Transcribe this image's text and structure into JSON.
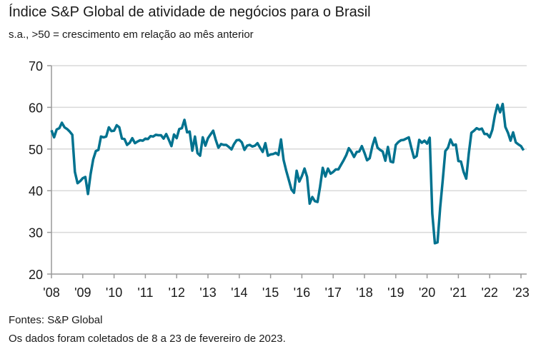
{
  "header": {
    "title": "Índice S&P Global de atividade de negócios para o Brasil",
    "subtitle": "s.a., >50 = crescimento em relação ao mês anterior"
  },
  "footer": {
    "source": "Fontes: S&P Global",
    "note": "Os dados foram coletados de 8 a 23 de fevereiro de 2023."
  },
  "chart_data": {
    "type": "line",
    "title": "Índice S&P Global de atividade de negócios para o Brasil",
    "subtitle": "s.a., >50 = crescimento em relação ao mês anterior",
    "xlabel": "",
    "ylabel": "",
    "ylim": [
      20,
      70
    ],
    "yticks": [
      "70",
      "60",
      "50",
      "40",
      "30",
      "20"
    ],
    "xticks": [
      "'08",
      "'09",
      "'10",
      "'11",
      "'12",
      "'13",
      "'14",
      "'15",
      "'16",
      "'17",
      "'18",
      "'19",
      "'20",
      "'21",
      "'22",
      "'23"
    ],
    "x_start": "2008-01",
    "x_end": "2023-02",
    "frequency": "monthly",
    "grid": true,
    "line_color": "#00728f",
    "values": [
      54.5,
      52.8,
      54.7,
      55,
      56.3,
      55.2,
      54.8,
      54.2,
      53.4,
      44.5,
      41.8,
      42.3,
      43,
      43.3,
      39.2,
      44,
      47.5,
      49.5,
      49.8,
      53,
      52.8,
      53,
      55.2,
      54.3,
      54.4,
      55.7,
      55.2,
      52.5,
      52.4,
      51,
      51.5,
      52.6,
      51.4,
      51.8,
      52.1,
      52,
      52.5,
      52.4,
      53.1,
      53,
      53.4,
      53.3,
      53.3,
      52.5,
      53.6,
      52.2,
      50.7,
      53.5,
      52.6,
      54.8,
      55,
      57,
      54,
      54.2,
      49.6,
      53,
      49,
      48.4,
      52.8,
      50.8,
      52.6,
      53.5,
      54.4,
      52.2,
      50.3,
      51.2,
      51,
      51,
      50.5,
      49.9,
      51.2,
      52.1,
      52.2,
      51.6,
      49.8,
      50.8,
      51,
      50.6,
      50.8,
      51.4,
      50.3,
      49.3,
      51.4,
      48.4,
      48.7,
      48.8,
      49.1,
      48.6,
      52.3,
      47.4,
      44.8,
      42.6,
      40.3,
      39.5,
      44.8,
      42.2,
      43.5,
      45.3,
      43.3,
      36.9,
      38.5,
      37.5,
      37.3,
      41,
      45.5,
      43.4,
      45.3,
      44.1,
      44.5,
      45.1,
      45.1,
      46.2,
      47.3,
      48.5,
      50.2,
      49.3,
      48.1,
      49.3,
      49.4,
      50.7,
      49.1,
      47.3,
      47.8,
      50.7,
      52.7,
      50.3,
      49.8,
      49.4,
      47.2,
      50.5,
      47,
      46.8,
      51,
      51.7,
      52.1,
      52.2,
      52.5,
      52.8,
      50.2,
      47.9,
      48.3,
      52.2,
      51.5,
      52,
      51.3,
      52.7,
      34.5,
      27.4,
      27.6,
      35.9,
      42.5,
      49.5,
      50.3,
      52.3,
      50.9,
      51.1,
      47.1,
      47,
      44.5,
      42.9,
      49,
      53.9,
      54.4,
      55,
      54.7,
      54.9,
      53.6,
      53.6,
      52.8,
      54.6,
      58.1,
      60.6,
      58.8,
      60.8,
      55.3,
      53.9,
      52,
      54,
      51.6,
      51.1,
      50.7,
      49.7
    ]
  }
}
